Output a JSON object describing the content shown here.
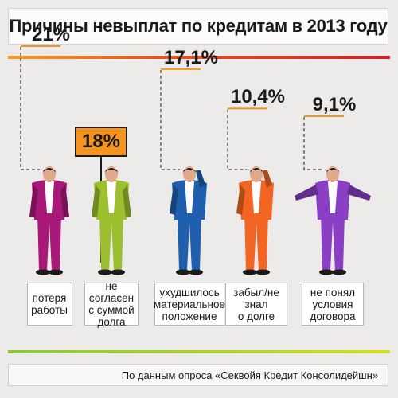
{
  "title": "Причины невыплат по кредитам в 2013 году",
  "source": "По данным опроса «Секвойя Кредит Консолидейшн»",
  "chart_data": {
    "type": "bar",
    "title": "Причины невыплат по кредитам в 2013 году",
    "categories": [
      "потеря\nработы",
      "не согласен\nс суммой\nдолга",
      "ухудшилось\nматериальное\nположение",
      "забыл/не знал\nо долге",
      "не понял\nусловия\nдоговора"
    ],
    "values": [
      21,
      18,
      17.1,
      10.4,
      9.1
    ],
    "value_labels": [
      "21%",
      "18%",
      "17,1%",
      "10,4%",
      "9,1%"
    ],
    "colors": [
      "#a8197a",
      "#9cbf2e",
      "#1f5fae",
      "#f26522",
      "#8a3fc4"
    ]
  }
}
